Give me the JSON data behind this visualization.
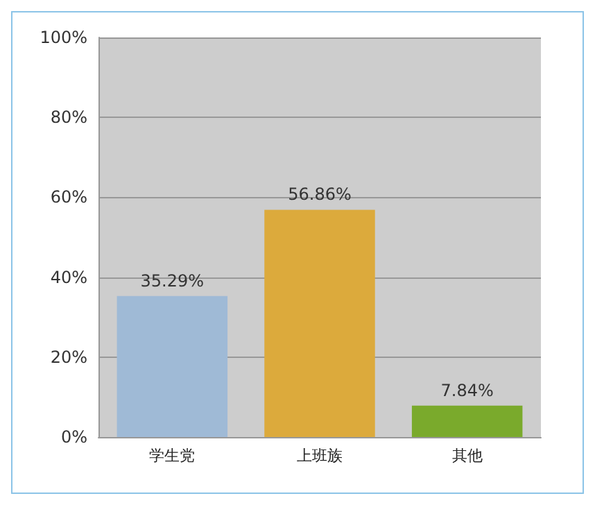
{
  "chart_data": {
    "type": "bar",
    "categories": [
      "学生党",
      "上班族",
      "其他"
    ],
    "values": [
      35.29,
      56.86,
      7.84
    ],
    "colors": [
      "#9fbad6",
      "#dcaa3c",
      "#7aaa2c"
    ],
    "value_labels": [
      "35.29%",
      "56.86%",
      "7.84%"
    ],
    "ylim": [
      0,
      100
    ],
    "yticks": [
      {
        "value": 0,
        "label": "0%"
      },
      {
        "value": 20,
        "label": "20%"
      },
      {
        "value": 40,
        "label": "40%"
      },
      {
        "value": 60,
        "label": "60%"
      },
      {
        "value": 80,
        "label": "80%"
      },
      {
        "value": 100,
        "label": "100%"
      }
    ],
    "grid": "y"
  }
}
